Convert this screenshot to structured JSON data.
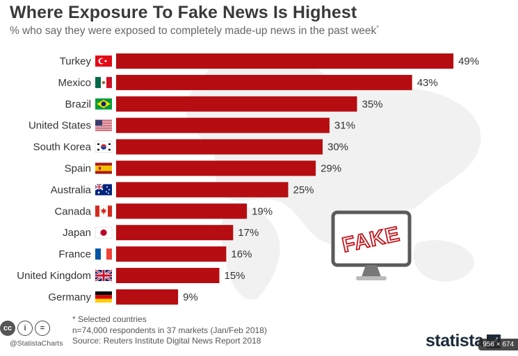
{
  "chart_data": {
    "type": "bar",
    "orientation": "horizontal",
    "title": "Where Exposure To Fake News Is Highest",
    "subtitle": "% who say they were exposed to completely made-up news in the past week",
    "subtitle_mark": "*",
    "categories": [
      "Turkey",
      "Mexico",
      "Brazil",
      "United States",
      "South Korea",
      "Spain",
      "Australia",
      "Canada",
      "Japan",
      "France",
      "United Kingdom",
      "Germany"
    ],
    "values": [
      49,
      43,
      35,
      31,
      30,
      29,
      25,
      19,
      17,
      16,
      15,
      9
    ],
    "value_suffix": "%",
    "xlim": [
      0,
      50
    ],
    "grid": false,
    "bar_color": "#b50d12"
  },
  "flags": [
    "turkey-flag-icon",
    "mexico-flag-icon",
    "brazil-flag-icon",
    "usa-flag-icon",
    "south-korea-flag-icon",
    "spain-flag-icon",
    "australia-flag-icon",
    "canada-flag-icon",
    "japan-flag-icon",
    "france-flag-icon",
    "uk-flag-icon",
    "germany-flag-icon"
  ],
  "illustration": {
    "screen_text": "FAKE",
    "icon": "monitor-icon"
  },
  "notes": {
    "selected": "* Selected countries",
    "respondents": "n=74,000 respondents in 37 markets (Jan/Feb 2018)",
    "source": "Source: Reuters Institute Digital News Report 2018"
  },
  "footer": {
    "handle": "@StatistaCharts",
    "brand": "statista",
    "license_icons": [
      "cc-icon",
      "attribution-icon",
      "no-derivatives-icon"
    ],
    "size_badge": "956 × 674"
  }
}
